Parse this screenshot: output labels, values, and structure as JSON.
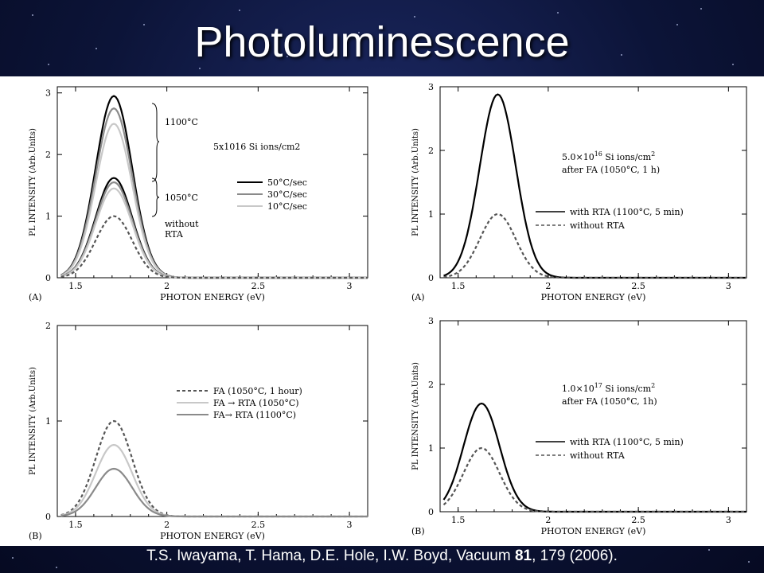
{
  "slide": {
    "title": "Photoluminescence",
    "citation_authors": "T.S. Iwayama, T. Hama, D.E. Hole, I.W. Boyd, Vacuum ",
    "citation_volume": "81",
    "citation_rest": ", 179 (2006)."
  },
  "colors": {
    "black": "#000000",
    "dark_gray": "#555555",
    "mid_gray": "#8a8a8a",
    "light_gray": "#c8c8c8"
  },
  "chart_data": [
    {
      "type": "line",
      "panel_label": "(A)",
      "xlabel": "PHOTON ENERGY (eV)",
      "ylabel": "PL INTENSITY (Arb.Units)",
      "xlim": [
        1.4,
        3.1
      ],
      "ylim": [
        0,
        3.1
      ],
      "xticks": [
        1.5,
        2,
        2.5,
        3
      ],
      "xtick_labels": [
        "1.5",
        "2",
        "2.5",
        "3"
      ],
      "yticks": [
        0,
        1,
        2,
        3
      ],
      "ytick_labels": [
        "0",
        "1",
        "2",
        "3"
      ],
      "annotations": [
        "1100°C",
        "1050°C",
        "5x1016 Si ions/cm2",
        "without RTA"
      ],
      "legend": [
        "50°C/sec",
        "30°C/sec",
        "10°C/sec"
      ],
      "series": [
        {
          "name": "50°C/sec",
          "group": "1100°C",
          "peak_x": 1.71,
          "peak": 2.95,
          "width": 0.1,
          "style": "solid",
          "color": "#000000"
        },
        {
          "name": "30°C/sec",
          "group": "1100°C",
          "peak_x": 1.71,
          "peak": 2.75,
          "width": 0.1,
          "style": "solid",
          "color": "#8a8a8a"
        },
        {
          "name": "10°C/sec",
          "group": "1100°C",
          "peak_x": 1.71,
          "peak": 2.5,
          "width": 0.1,
          "style": "solid",
          "color": "#c8c8c8"
        },
        {
          "name": "50°C/sec",
          "group": "1050°C",
          "peak_x": 1.71,
          "peak": 1.62,
          "width": 0.1,
          "style": "solid",
          "color": "#000000"
        },
        {
          "name": "30°C/sec",
          "group": "1050°C",
          "peak_x": 1.71,
          "peak": 1.55,
          "width": 0.1,
          "style": "solid",
          "color": "#8a8a8a"
        },
        {
          "name": "10°C/sec",
          "group": "1050°C",
          "peak_x": 1.71,
          "peak": 1.45,
          "width": 0.1,
          "style": "solid",
          "color": "#c8c8c8"
        },
        {
          "name": "without RTA",
          "peak_x": 1.71,
          "peak": 1.0,
          "width": 0.1,
          "style": "dashed",
          "color": "#555555"
        }
      ]
    },
    {
      "type": "line",
      "panel_label": "(A)",
      "xlabel": "PHOTON ENERGY (eV)",
      "ylabel": "PL INTENSITY (Arb.Units)",
      "xlim": [
        1.4,
        3.1
      ],
      "ylim": [
        0,
        3
      ],
      "xticks": [
        1.5,
        2,
        2.5,
        3
      ],
      "xtick_labels": [
        "1.5",
        "2",
        "2.5",
        "3"
      ],
      "yticks": [
        0,
        1,
        2,
        3
      ],
      "ytick_labels": [
        "0",
        "1",
        "2",
        "3"
      ],
      "annotations": [
        "5.0×10",
        "16",
        " Si ions/cm",
        "2",
        "after FA (1050°C, 1 h)"
      ],
      "legend": [
        "with RTA (1100°C, 5 min)",
        "without RTA"
      ],
      "series": [
        {
          "name": "with RTA (1100°C, 5 min)",
          "peak_x": 1.72,
          "peak": 2.88,
          "width": 0.1,
          "style": "solid",
          "color": "#000000"
        },
        {
          "name": "without RTA",
          "peak_x": 1.72,
          "peak": 1.0,
          "width": 0.1,
          "style": "dashed",
          "color": "#555555"
        }
      ]
    },
    {
      "type": "line",
      "panel_label": "(B)",
      "xlabel": "PHOTON ENERGY (eV)",
      "ylabel": "PL INTENSITY (Arb.Units)",
      "xlim": [
        1.4,
        3.1
      ],
      "ylim": [
        0,
        2
      ],
      "xticks": [
        1.5,
        2,
        2.5,
        3
      ],
      "xtick_labels": [
        "1.5",
        "2",
        "2.5",
        "3"
      ],
      "yticks": [
        0,
        1,
        2
      ],
      "ytick_labels": [
        "0",
        "1",
        "2"
      ],
      "annotations": [],
      "legend": [
        "FA (1050°C, 1 hour)",
        "FA → RTA (1050°C)",
        "FA→ RTA (1100°C)"
      ],
      "series": [
        {
          "name": "FA (1050°C, 1 hour)",
          "peak_x": 1.71,
          "peak": 1.0,
          "width": 0.1,
          "style": "dashed",
          "color": "#555555"
        },
        {
          "name": "FA → RTA (1050°C)",
          "peak_x": 1.71,
          "peak": 0.75,
          "width": 0.1,
          "style": "solid",
          "color": "#c8c8c8"
        },
        {
          "name": "FA→ RTA (1100°C)",
          "peak_x": 1.71,
          "peak": 0.5,
          "width": 0.1,
          "style": "solid",
          "color": "#8a8a8a"
        }
      ]
    },
    {
      "type": "line",
      "panel_label": "(B)",
      "xlabel": "PHOTON ENERGY (eV)",
      "ylabel": "PL INTENSITY (Arb.Units)",
      "xlim": [
        1.4,
        3.1
      ],
      "ylim": [
        0,
        3
      ],
      "xticks": [
        1.5,
        2,
        2.5,
        3
      ],
      "xtick_labels": [
        "1.5",
        "2",
        "2.5",
        "3"
      ],
      "yticks": [
        0,
        1,
        2,
        3
      ],
      "ytick_labels": [
        "0",
        "1",
        "2",
        "3"
      ],
      "annotations": [
        "1.0×10",
        "17",
        " Si ions/cm",
        "2",
        "after FA (1050°C, 1h)"
      ],
      "legend": [
        "with RTA (1100°C, 5 min)",
        "without RTA"
      ],
      "series": [
        {
          "name": "with RTA (1100°C, 5 min)",
          "peak_x": 1.63,
          "peak": 1.7,
          "width": 0.1,
          "style": "solid",
          "color": "#000000"
        },
        {
          "name": "without RTA",
          "peak_x": 1.63,
          "peak": 1.0,
          "width": 0.1,
          "style": "dashed",
          "color": "#555555"
        }
      ]
    }
  ]
}
